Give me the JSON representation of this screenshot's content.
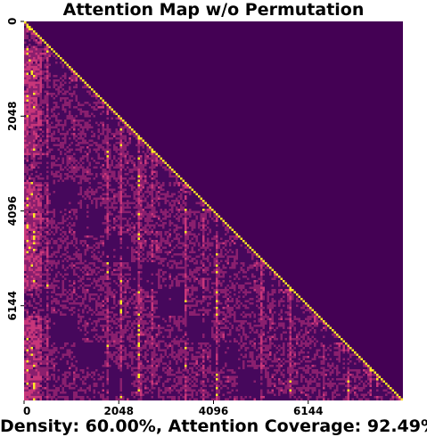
{
  "chart_data": {
    "type": "heatmap",
    "title": "Attention Map w/o Permutation",
    "summary_text": "Density: 60.00%, Attention Coverage: 92.49%",
    "x_ticks": [
      "0",
      "2048",
      "4096",
      "6144"
    ],
    "y_ticks": [
      "0",
      "2048",
      "4096",
      "6144"
    ],
    "x_tick_values": [
      0,
      2048,
      4096,
      6144
    ],
    "y_tick_values": [
      0,
      2048,
      4096,
      6144
    ],
    "xlim": [
      0,
      8192
    ],
    "ylim": [
      0,
      8192
    ],
    "mask": "causal (lower-triangular)",
    "density_percent": 60.0,
    "attention_coverage_percent": 92.49,
    "colormap": "viridis-like (dark purple to yellow)",
    "colors": {
      "masked": "#440154",
      "low": "#46085c",
      "mid": "#8a1f6e",
      "high": "#c8367a",
      "peak": "#fde725"
    }
  }
}
